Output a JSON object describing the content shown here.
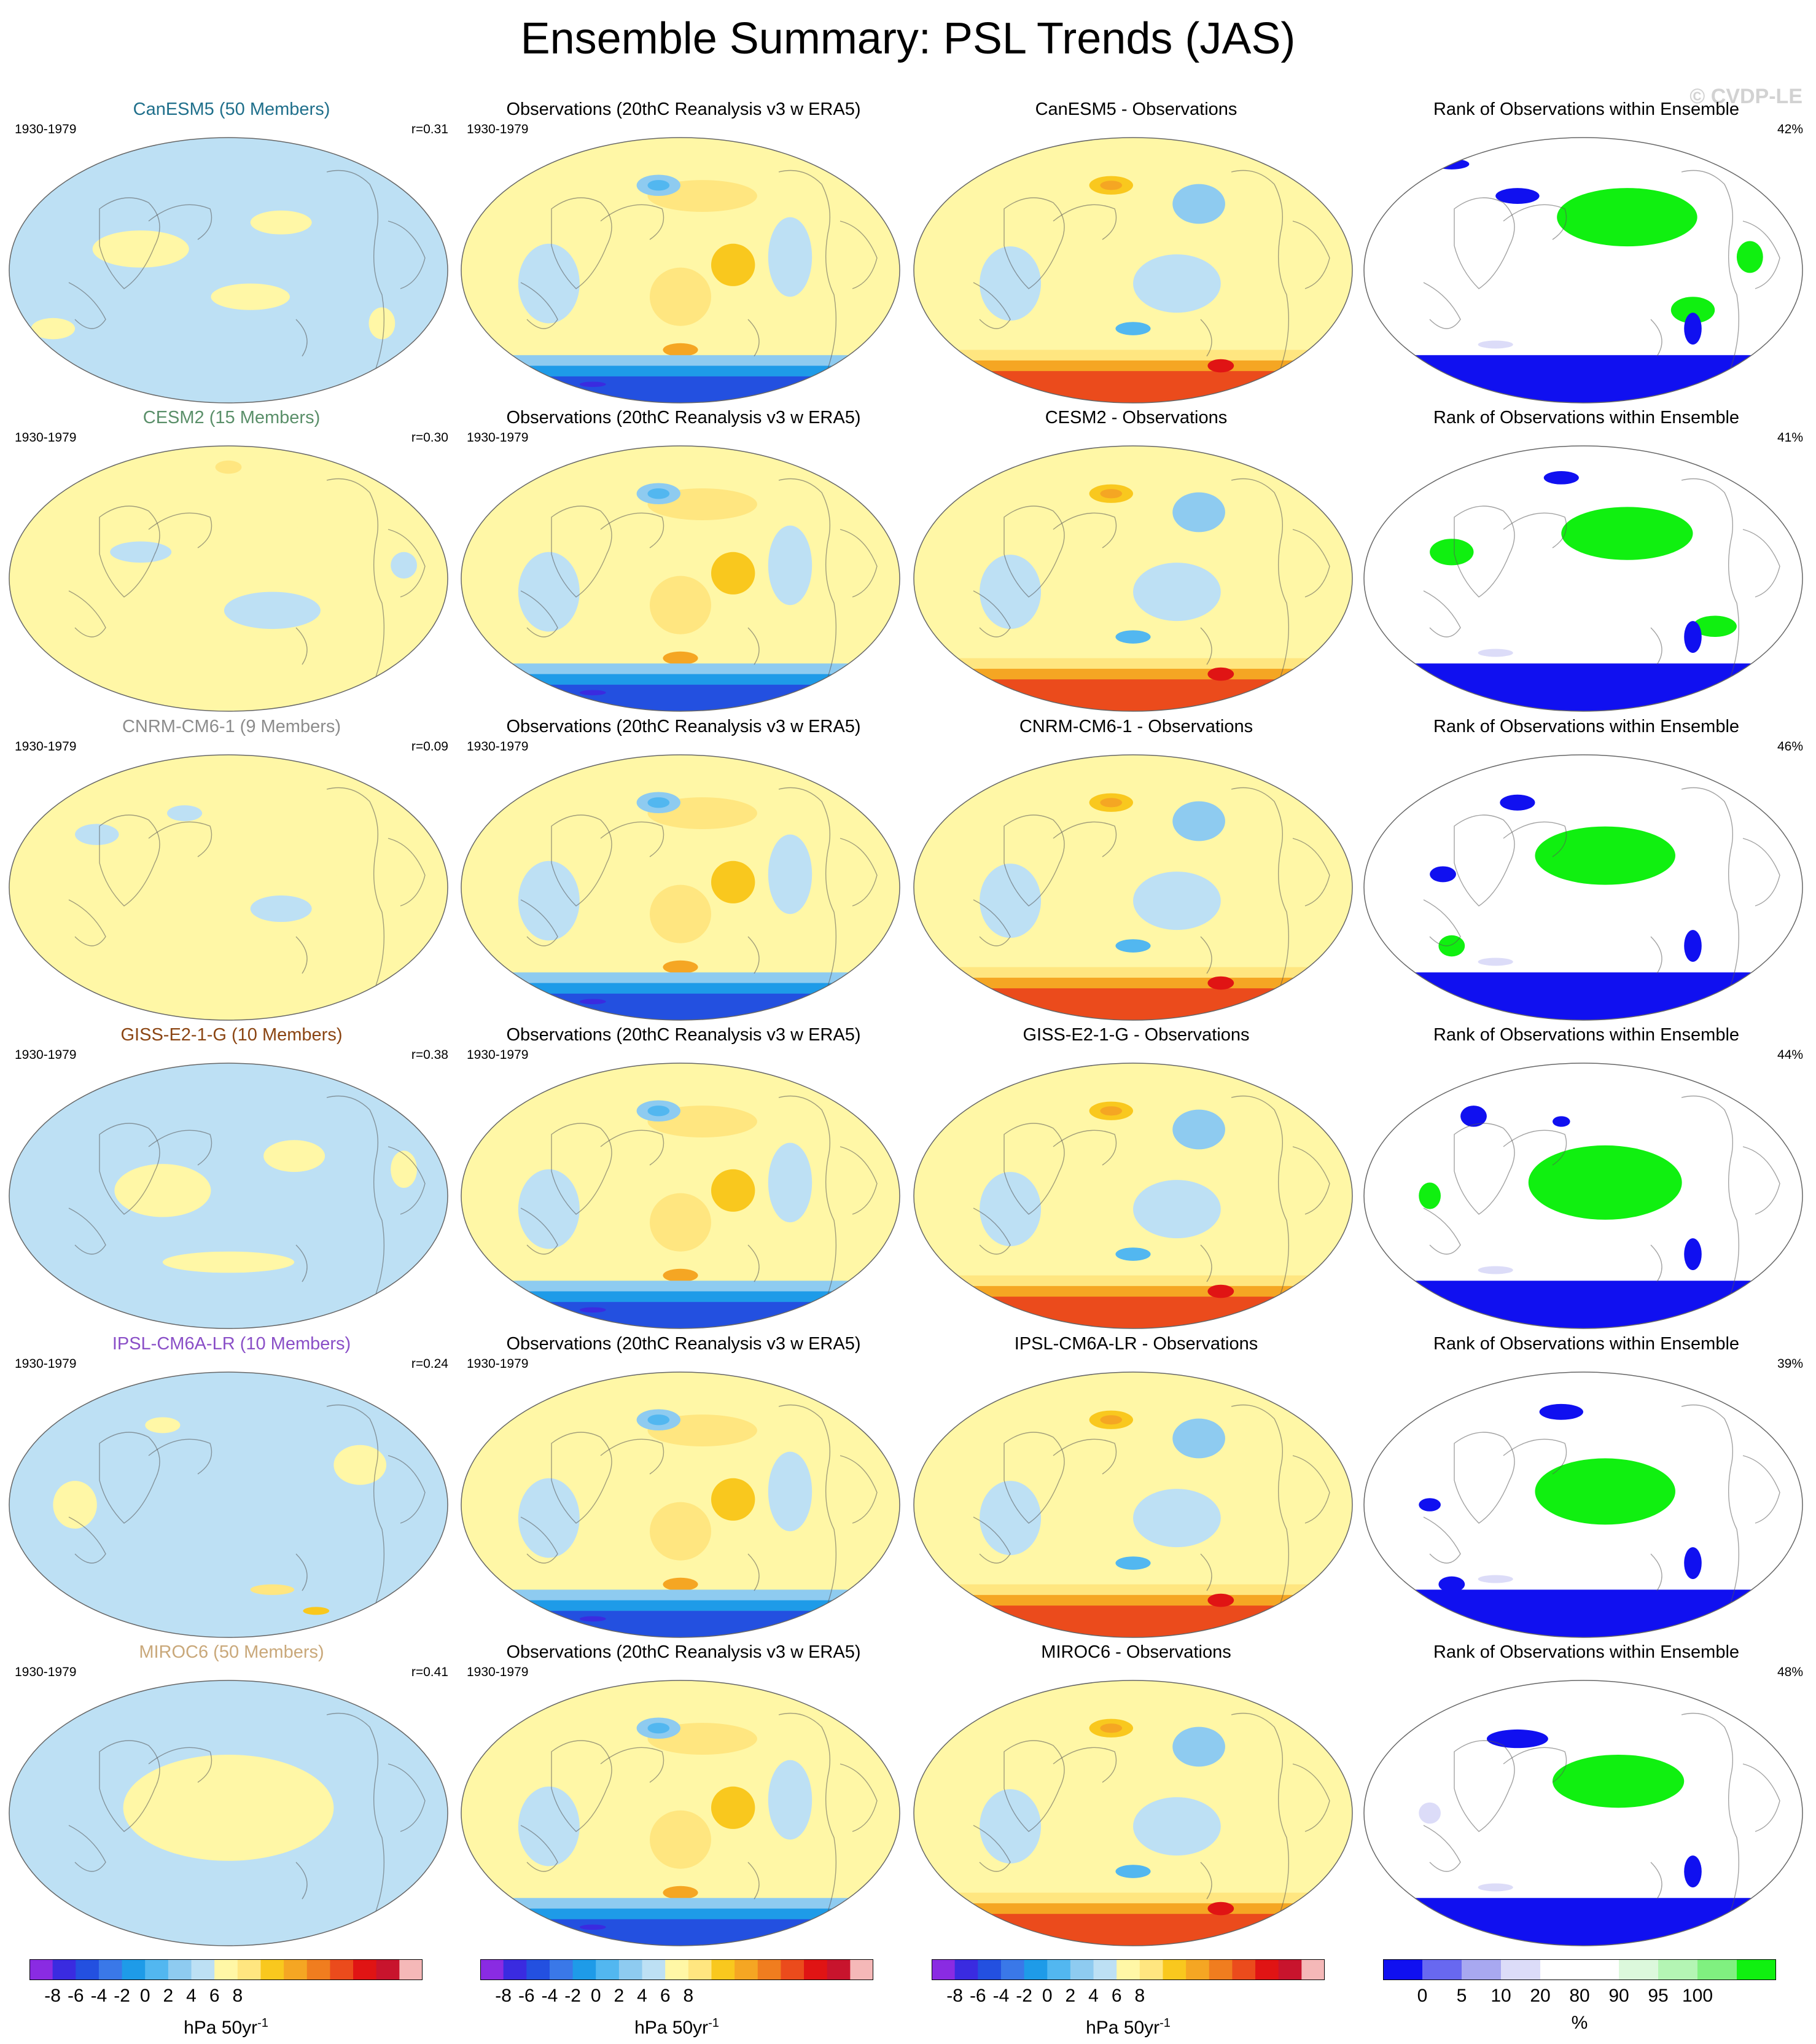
{
  "title": "Ensemble Summary: PSL Trends (JAS)",
  "watermark": "© CVDP-LE",
  "colors": {
    "model_titles": [
      "#1f6f8b",
      "#5a8f69",
      "#8c8c8c",
      "#8b4513",
      "#8a4fc7",
      "#c9a87a"
    ],
    "trend_palette": [
      "#8a2be2",
      "#3a2be0",
      "#2350e0",
      "#3a78e8",
      "#1e9be8",
      "#52b7f0",
      "#8ecbf0",
      "#bde0f4",
      "#fff7a6",
      "#ffe680",
      "#f9c81e",
      "#f5a623",
      "#f07d1f",
      "#eb4b1c",
      "#e01414",
      "#c8142d",
      "#f5b8b8"
    ],
    "rank_palette": [
      "#1010f0",
      "#6868f0",
      "#a8a8f0",
      "#dcdcf8",
      "#ffffff",
      "#ffffff",
      "#dcf8dc",
      "#b4f5b4",
      "#80f080",
      "#10f010"
    ]
  },
  "chart_data": {
    "type": "heatmap",
    "period": "1930-1979",
    "rows": [
      {
        "model": "CanESM5 (50 Members)",
        "r": "r=0.31",
        "obs": "Observations (20thC Reanalysis v3 w ERA5)",
        "diff": "CanESM5 - Observations",
        "rank_title": "Rank of Observations within Ensemble",
        "rank_pct": "42%"
      },
      {
        "model": "CESM2 (15 Members)",
        "r": "r=0.30",
        "obs": "Observations (20thC Reanalysis v3 w ERA5)",
        "diff": "CESM2 - Observations",
        "rank_title": "Rank of Observations within Ensemble",
        "rank_pct": "41%"
      },
      {
        "model": "CNRM-CM6-1 (9 Members)",
        "r": "r=0.09",
        "obs": "Observations (20thC Reanalysis v3 w ERA5)",
        "diff": "CNRM-CM6-1 - Observations",
        "rank_title": "Rank of Observations within Ensemble",
        "rank_pct": "46%"
      },
      {
        "model": "GISS-E2-1-G (10 Members)",
        "r": "r=0.38",
        "obs": "Observations (20thC Reanalysis v3 w ERA5)",
        "diff": "GISS-E2-1-G - Observations",
        "rank_title": "Rank of Observations within Ensemble",
        "rank_pct": "44%"
      },
      {
        "model": "IPSL-CM6A-LR (10 Members)",
        "r": "r=0.24",
        "obs": "Observations (20thC Reanalysis v3 w ERA5)",
        "diff": "IPSL-CM6A-LR - Observations",
        "rank_title": "Rank of Observations within Ensemble",
        "rank_pct": "39%"
      },
      {
        "model": "MIROC6 (50 Members)",
        "r": "r=0.41",
        "obs": "Observations (20thC Reanalysis v3 w ERA5)",
        "diff": "MIROC6 - Observations",
        "rank_title": "Rank of Observations within Ensemble",
        "rank_pct": "48%"
      }
    ],
    "colorbars": [
      {
        "ticks": [
          "-8",
          "-6",
          "-4",
          "-2",
          "0",
          "2",
          "4",
          "6",
          "8"
        ],
        "units": "hPa 50yr",
        "units_sup": "-1"
      },
      {
        "ticks": [
          "-8",
          "-6",
          "-4",
          "-2",
          "0",
          "2",
          "4",
          "6",
          "8"
        ],
        "units": "hPa 50yr",
        "units_sup": "-1"
      },
      {
        "ticks": [
          "-8",
          "-6",
          "-4",
          "-2",
          "0",
          "2",
          "4",
          "6",
          "8"
        ],
        "units": "hPa 50yr",
        "units_sup": "-1"
      },
      {
        "ticks": [
          "0",
          "5",
          "10",
          "20",
          "80",
          "90",
          "95",
          "100"
        ],
        "units": "%",
        "units_sup": ""
      }
    ]
  }
}
